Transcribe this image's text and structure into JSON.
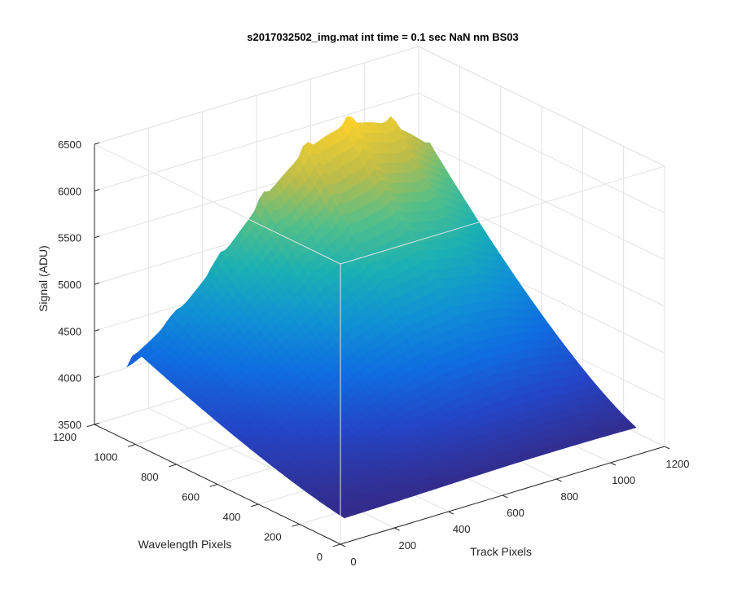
{
  "chart_data": {
    "type": "surface",
    "title": "s2017032502_img.mat int time = 0.1 sec  NaN nm BS03",
    "xlabel": "Track Pixels",
    "ylabel": "Wavelength Pixels",
    "zlabel": "Signal (ADU)",
    "xlim": [
      0,
      1200
    ],
    "ylim": [
      0,
      1200
    ],
    "zlim": [
      3500,
      6500
    ],
    "x_ticks": [
      "0",
      "200",
      "400",
      "600",
      "800",
      "1000",
      "1200"
    ],
    "y_ticks": [
      "0",
      "200",
      "400",
      "600",
      "800",
      "1000",
      "1200"
    ],
    "z_ticks": [
      "3500",
      "4000",
      "4500",
      "5000",
      "5500",
      "6000",
      "6500"
    ],
    "grid": true,
    "colormap": "parula",
    "approx_peak_signal": 6150,
    "approx_floor_signal": 3650,
    "ridge_count_along_track": 15
  }
}
